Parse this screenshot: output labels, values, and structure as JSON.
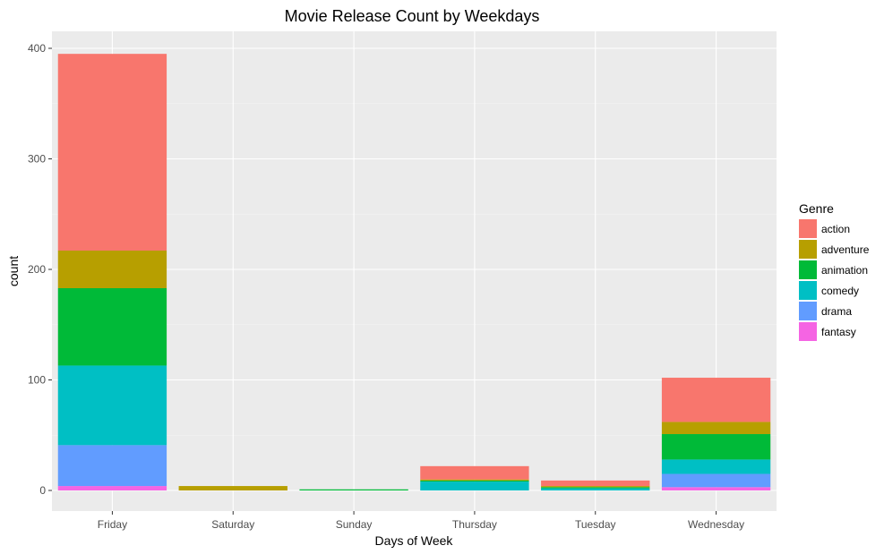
{
  "chart_data": {
    "type": "bar",
    "stacked": true,
    "title": "Movie Release Count by Weekdays",
    "xlabel": "Days of Week",
    "ylabel": "count",
    "ylim": [
      0,
      400
    ],
    "yticks": [
      0,
      100,
      200,
      300,
      400
    ],
    "categories": [
      "Friday",
      "Saturday",
      "Sunday",
      "Thursday",
      "Tuesday",
      "Wednesday"
    ],
    "legend": {
      "title": "Genre",
      "position": "right"
    },
    "grid": true,
    "series": [
      {
        "name": "action",
        "color": "#F8766D",
        "values": [
          178,
          0,
          0,
          12,
          5,
          40
        ]
      },
      {
        "name": "adventure",
        "color": "#B79F00",
        "values": [
          34,
          4,
          0,
          1,
          1,
          11
        ]
      },
      {
        "name": "animation",
        "color": "#00BA38",
        "values": [
          70,
          0,
          1,
          1,
          1,
          23
        ]
      },
      {
        "name": "comedy",
        "color": "#00BFC4",
        "values": [
          72,
          0,
          0,
          8,
          2,
          13
        ]
      },
      {
        "name": "drama",
        "color": "#619CFF",
        "values": [
          37,
          0,
          0,
          0,
          0,
          12
        ]
      },
      {
        "name": "fantasy",
        "color": "#F564E3",
        "values": [
          4,
          0,
          0,
          0,
          0,
          3
        ]
      }
    ]
  }
}
